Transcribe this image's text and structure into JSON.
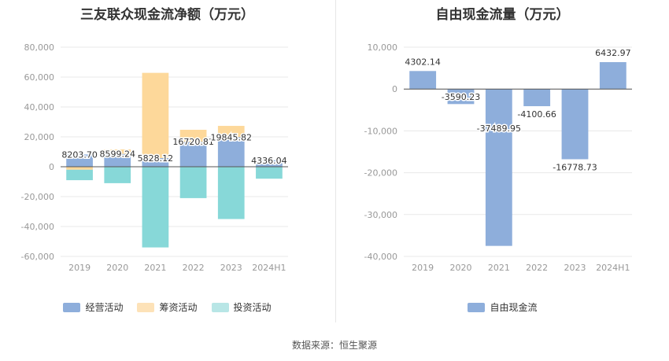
{
  "source": "数据来源：恒生聚源",
  "chart_data": [
    {
      "type": "bar",
      "stacked": true,
      "title": "三友联众现金流净额（万元）",
      "categories": [
        "2019",
        "2020",
        "2021",
        "2022",
        "2023",
        "2024H1"
      ],
      "ylim": [
        -60000,
        80000
      ],
      "yticks": [
        80000,
        60000,
        40000,
        20000,
        0,
        -20000,
        -40000,
        -60000
      ],
      "ytick_labels": [
        "80,000",
        "60,000",
        "40,000",
        "20,000",
        "0",
        "-20,000",
        "-40,000",
        "-60,000"
      ],
      "grid": true,
      "legend_position": "bottom",
      "series": [
        {
          "name": "经营活动",
          "color": "#8eaedb",
          "values": [
            8203.7,
            8599.24,
            5828.12,
            16720.81,
            19845.82,
            4336.04
          ]
        },
        {
          "name": "筹资活动",
          "color": "#fdd89a",
          "values": [
            -2000,
            3000,
            57000,
            8000,
            7500,
            0
          ]
        },
        {
          "name": "投资活动",
          "color": "#87d8d8",
          "values": [
            -7000,
            -11000,
            -54000,
            -21000,
            -35000,
            -8000
          ]
        }
      ],
      "data_labels": [
        "8203.70",
        "8599.24",
        "5828.12",
        "16720.81",
        "19845.82",
        "4336.04"
      ]
    },
    {
      "type": "bar",
      "title": "自由现金流量（万元）",
      "categories": [
        "2019",
        "2020",
        "2021",
        "2022",
        "2023",
        "2024H1"
      ],
      "ylim": [
        -40000,
        10000
      ],
      "yticks": [
        10000,
        0,
        -10000,
        -20000,
        -30000,
        -40000
      ],
      "ytick_labels": [
        "10,000",
        "0",
        "-10,000",
        "-20,000",
        "-30,000",
        "-40,000"
      ],
      "grid": true,
      "legend_position": "bottom",
      "series": [
        {
          "name": "自由现金流",
          "color": "#8eaedb",
          "values": [
            4302.14,
            -3590.23,
            -37489.95,
            -4100.66,
            -16778.73,
            6432.97
          ]
        }
      ],
      "data_labels": [
        "4302.14",
        "-3590.23",
        "-37489.95",
        "-4100.66",
        "-16778.73",
        "6432.97"
      ]
    }
  ]
}
